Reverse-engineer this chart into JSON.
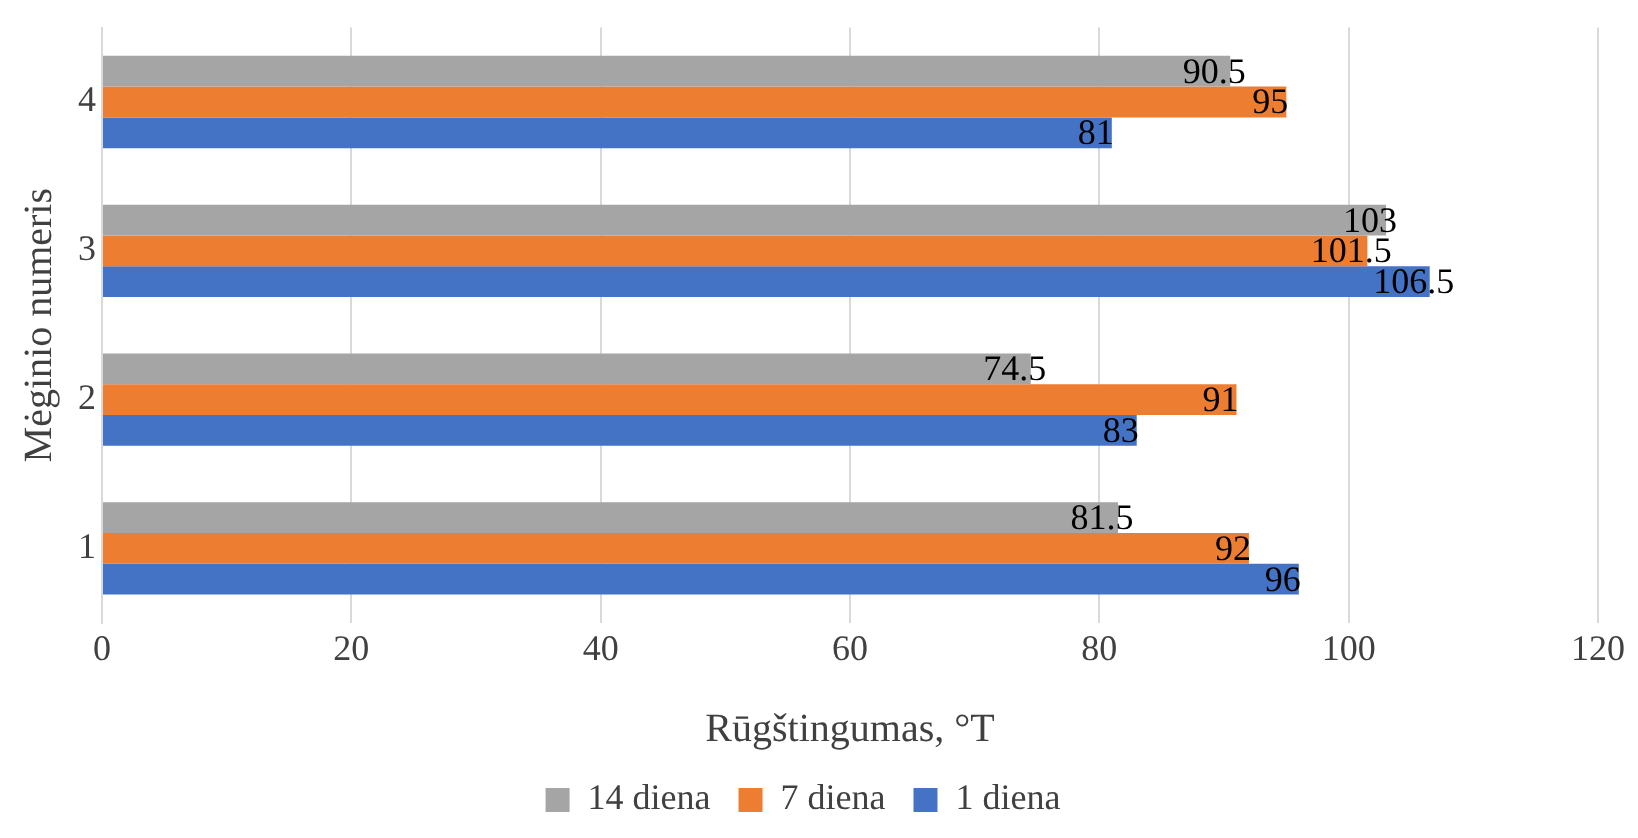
{
  "chart_data": {
    "type": "bar",
    "orientation": "horizontal",
    "xlabel": "Rūgštingumas, °T",
    "ylabel": "Mėginio numeris",
    "categories": [
      "4",
      "3",
      "2",
      "1"
    ],
    "series": [
      {
        "name": "14 diena",
        "color": "#a5a5a5",
        "values": [
          90.5,
          103,
          74.5,
          81.5
        ]
      },
      {
        "name": "7 diena",
        "color": "#ed7d31",
        "values": [
          95,
          101.5,
          91,
          92
        ]
      },
      {
        "name": "1 diena",
        "color": "#4472c4",
        "values": [
          81,
          106.5,
          83,
          96
        ]
      }
    ],
    "xlim": [
      0,
      120
    ],
    "xticks": [
      0,
      20,
      40,
      60,
      80,
      100,
      120
    ],
    "grid": "x",
    "legend": "bottom",
    "data_labels": true
  }
}
